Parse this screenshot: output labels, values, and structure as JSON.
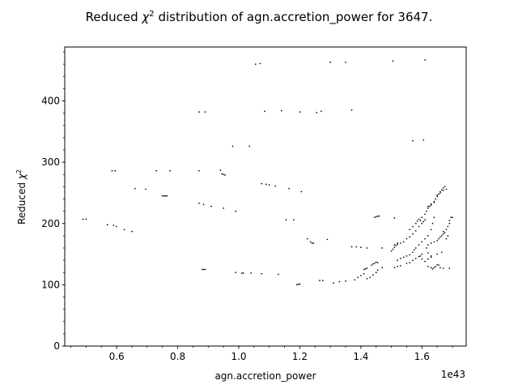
{
  "chart_data": {
    "type": "scatter",
    "title_prefix": "Reduced ",
    "title_symbol": "χ",
    "title_sup": "2",
    "title_suffix": " distribution of agn.accretion_power for 3647.",
    "xlabel": "agn.accretion_power",
    "ylabel_prefix": "Reduced ",
    "ylabel_symbol": "χ",
    "ylabel_sup": "2",
    "x_offset_label": "1e43",
    "xlim": [
      0.43,
      1.745
    ],
    "ylim": [
      0,
      488
    ],
    "x_ticks": [
      0.6,
      0.8,
      1.0,
      1.2,
      1.4,
      1.6
    ],
    "x_tick_labels": [
      "0.6",
      "0.8",
      "1.0",
      "1.2",
      "1.4",
      "1.6"
    ],
    "y_ticks": [
      0,
      100,
      200,
      300,
      400
    ],
    "y_tick_labels": [
      "0",
      "100",
      "200",
      "300",
      "400"
    ],
    "x_minor_step": 0.05,
    "y_minor_step": 20,
    "grid": false,
    "marker_color": "#000000",
    "points": [
      [
        0.49,
        207
      ],
      [
        0.5,
        207
      ],
      [
        0.57,
        198
      ],
      [
        0.59,
        197
      ],
      [
        0.6,
        195
      ],
      [
        0.625,
        190
      ],
      [
        0.65,
        187
      ],
      [
        0.585,
        286
      ],
      [
        0.595,
        286
      ],
      [
        0.66,
        257
      ],
      [
        0.695,
        256
      ],
      [
        0.73,
        286
      ],
      [
        0.775,
        286
      ],
      [
        0.755,
        245
      ],
      [
        0.76,
        245
      ],
      [
        0.765,
        245
      ],
      [
        0.75,
        245
      ],
      [
        0.87,
        382
      ],
      [
        0.89,
        382
      ],
      [
        0.87,
        233
      ],
      [
        0.885,
        231
      ],
      [
        0.91,
        228
      ],
      [
        0.95,
        225
      ],
      [
        0.99,
        220
      ],
      [
        0.87,
        286
      ],
      [
        0.94,
        287
      ],
      [
        0.945,
        281
      ],
      [
        0.95,
        280
      ],
      [
        0.955,
        279
      ],
      [
        0.98,
        326
      ],
      [
        1.035,
        326
      ],
      [
        0.88,
        125
      ],
      [
        0.885,
        125
      ],
      [
        0.89,
        125
      ],
      [
        0.99,
        120
      ],
      [
        1.01,
        119
      ],
      [
        1.015,
        119
      ],
      [
        1.04,
        119
      ],
      [
        1.075,
        118
      ],
      [
        1.13,
        117
      ],
      [
        1.055,
        460
      ],
      [
        1.07,
        461
      ],
      [
        1.3,
        463
      ],
      [
        1.35,
        463
      ],
      [
        1.505,
        465
      ],
      [
        1.61,
        467
      ],
      [
        1.085,
        383
      ],
      [
        1.14,
        384
      ],
      [
        1.2,
        382
      ],
      [
        1.255,
        381
      ],
      [
        1.27,
        383
      ],
      [
        1.37,
        385
      ],
      [
        1.075,
        265
      ],
      [
        1.09,
        264
      ],
      [
        1.1,
        263
      ],
      [
        1.12,
        261
      ],
      [
        1.165,
        257
      ],
      [
        1.205,
        252
      ],
      [
        1.155,
        206
      ],
      [
        1.18,
        206
      ],
      [
        1.225,
        175
      ],
      [
        1.235,
        170
      ],
      [
        1.24,
        168
      ],
      [
        1.245,
        168
      ],
      [
        1.29,
        174
      ],
      [
        1.19,
        100
      ],
      [
        1.195,
        101
      ],
      [
        1.2,
        101
      ],
      [
        1.265,
        107
      ],
      [
        1.275,
        107
      ],
      [
        1.31,
        103
      ],
      [
        1.33,
        105
      ],
      [
        1.35,
        106
      ],
      [
        1.38,
        108
      ],
      [
        1.39,
        112
      ],
      [
        1.4,
        115
      ],
      [
        1.41,
        118
      ],
      [
        1.42,
        110
      ],
      [
        1.43,
        112
      ],
      [
        1.44,
        116
      ],
      [
        1.45,
        120
      ],
      [
        1.455,
        124
      ],
      [
        1.47,
        128
      ],
      [
        1.41,
        125
      ],
      [
        1.415,
        126
      ],
      [
        1.42,
        127
      ],
      [
        1.435,
        132
      ],
      [
        1.44,
        134
      ],
      [
        1.445,
        135
      ],
      [
        1.45,
        137
      ],
      [
        1.455,
        136
      ],
      [
        1.37,
        162
      ],
      [
        1.385,
        162
      ],
      [
        1.4,
        161
      ],
      [
        1.42,
        160
      ],
      [
        1.47,
        160
      ],
      [
        1.51,
        165
      ],
      [
        1.52,
        168
      ],
      [
        1.445,
        210
      ],
      [
        1.45,
        211
      ],
      [
        1.455,
        212
      ],
      [
        1.46,
        212
      ],
      [
        1.51,
        209
      ],
      [
        1.5,
        155
      ],
      [
        1.505,
        158
      ],
      [
        1.51,
        161
      ],
      [
        1.515,
        164
      ],
      [
        1.52,
        166
      ],
      [
        1.53,
        168
      ],
      [
        1.54,
        170
      ],
      [
        1.55,
        175
      ],
      [
        1.56,
        178
      ],
      [
        1.57,
        183
      ],
      [
        1.58,
        188
      ],
      [
        1.59,
        195
      ],
      [
        1.6,
        200
      ],
      [
        1.605,
        203
      ],
      [
        1.61,
        206
      ],
      [
        1.52,
        140
      ],
      [
        1.53,
        143
      ],
      [
        1.54,
        145
      ],
      [
        1.55,
        147
      ],
      [
        1.56,
        149
      ],
      [
        1.57,
        153
      ],
      [
        1.575,
        157
      ],
      [
        1.58,
        160
      ],
      [
        1.59,
        165
      ],
      [
        1.6,
        170
      ],
      [
        1.61,
        175
      ],
      [
        1.62,
        180
      ],
      [
        1.63,
        190
      ],
      [
        1.635,
        200
      ],
      [
        1.64,
        210
      ],
      [
        1.51,
        128
      ],
      [
        1.52,
        130
      ],
      [
        1.53,
        131
      ],
      [
        1.55,
        135
      ],
      [
        1.56,
        136
      ],
      [
        1.57,
        140
      ],
      [
        1.58,
        143
      ],
      [
        1.59,
        146
      ],
      [
        1.595,
        147
      ],
      [
        1.6,
        142
      ],
      [
        1.61,
        138
      ],
      [
        1.62,
        142
      ],
      [
        1.63,
        145
      ],
      [
        1.56,
        190
      ],
      [
        1.57,
        195
      ],
      [
        1.58,
        200
      ],
      [
        1.585,
        204
      ],
      [
        1.59,
        207
      ],
      [
        1.595,
        205
      ],
      [
        1.6,
        210
      ],
      [
        1.61,
        215
      ],
      [
        1.615,
        220
      ],
      [
        1.62,
        225
      ],
      [
        1.625,
        228
      ],
      [
        1.63,
        232
      ],
      [
        1.64,
        236
      ],
      [
        1.645,
        240
      ],
      [
        1.65,
        244
      ],
      [
        1.655,
        248
      ],
      [
        1.66,
        252
      ],
      [
        1.665,
        255
      ],
      [
        1.67,
        258
      ],
      [
        1.675,
        260
      ],
      [
        1.62,
        228
      ],
      [
        1.63,
        230
      ],
      [
        1.64,
        234
      ],
      [
        1.65,
        246
      ],
      [
        1.66,
        250
      ],
      [
        1.67,
        254
      ],
      [
        1.68,
        256
      ],
      [
        1.57,
        335
      ],
      [
        1.605,
        336
      ],
      [
        1.62,
        130
      ],
      [
        1.63,
        128
      ],
      [
        1.635,
        126
      ],
      [
        1.64,
        128
      ],
      [
        1.645,
        130
      ],
      [
        1.65,
        133
      ],
      [
        1.655,
        132
      ],
      [
        1.66,
        128
      ],
      [
        1.67,
        127
      ],
      [
        1.69,
        127
      ],
      [
        1.615,
        160
      ],
      [
        1.62,
        165
      ],
      [
        1.63,
        168
      ],
      [
        1.64,
        170
      ],
      [
        1.65,
        172
      ],
      [
        1.655,
        175
      ],
      [
        1.66,
        178
      ],
      [
        1.665,
        180
      ],
      [
        1.67,
        183
      ],
      [
        1.675,
        185
      ],
      [
        1.68,
        190
      ],
      [
        1.685,
        195
      ],
      [
        1.69,
        200
      ],
      [
        1.7,
        210
      ],
      [
        1.6,
        150
      ],
      [
        1.62,
        152
      ],
      [
        1.63,
        147
      ],
      [
        1.65,
        150
      ],
      [
        1.665,
        153
      ],
      [
        1.67,
        187
      ],
      [
        1.68,
        175
      ],
      [
        1.685,
        180
      ],
      [
        1.69,
        205
      ],
      [
        1.695,
        210
      ]
    ]
  }
}
